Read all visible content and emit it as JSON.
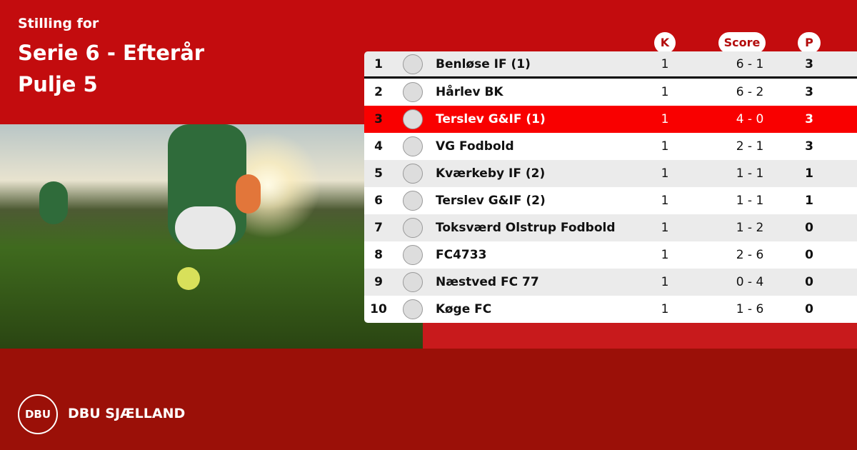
{
  "header": {
    "subtitle": "Stilling for",
    "title": "Serie 6 - Efterår",
    "group": "Pulje 5"
  },
  "columns": {
    "k": "K",
    "score": "Score",
    "p": "P"
  },
  "colors": {
    "top": "#c30c0e",
    "bottom": "#9b1008",
    "highlight": "#f90000"
  },
  "rows": [
    {
      "pos": "1",
      "team": "Benløse IF (1)",
      "k": "1",
      "score": "6 - 1",
      "p": "3"
    },
    {
      "pos": "2",
      "team": "Hårlev BK",
      "k": "1",
      "score": "6 - 2",
      "p": "3"
    },
    {
      "pos": "3",
      "team": "Terslev G&IF (1)",
      "k": "1",
      "score": "4 - 0",
      "p": "3",
      "highlighted": true
    },
    {
      "pos": "4",
      "team": "VG Fodbold",
      "k": "1",
      "score": "2 - 1",
      "p": "3"
    },
    {
      "pos": "5",
      "team": "Kværkeby IF (2)",
      "k": "1",
      "score": "1 - 1",
      "p": "1"
    },
    {
      "pos": "6",
      "team": "Terslev G&IF (2)",
      "k": "1",
      "score": "1 - 1",
      "p": "1"
    },
    {
      "pos": "7",
      "team": "Toksværd Olstrup Fodbold",
      "k": "1",
      "score": "1 - 2",
      "p": "0"
    },
    {
      "pos": "8",
      "team": "FC4733",
      "k": "1",
      "score": "2 - 6",
      "p": "0"
    },
    {
      "pos": "9",
      "team": "Næstved FC 77",
      "k": "1",
      "score": "0 - 4",
      "p": "0"
    },
    {
      "pos": "10",
      "team": "Køge FC",
      "k": "1",
      "score": "1 - 6",
      "p": "0"
    }
  ],
  "footer": {
    "logo_text": "DBU",
    "brand": "DBU SJÆLLAND"
  }
}
